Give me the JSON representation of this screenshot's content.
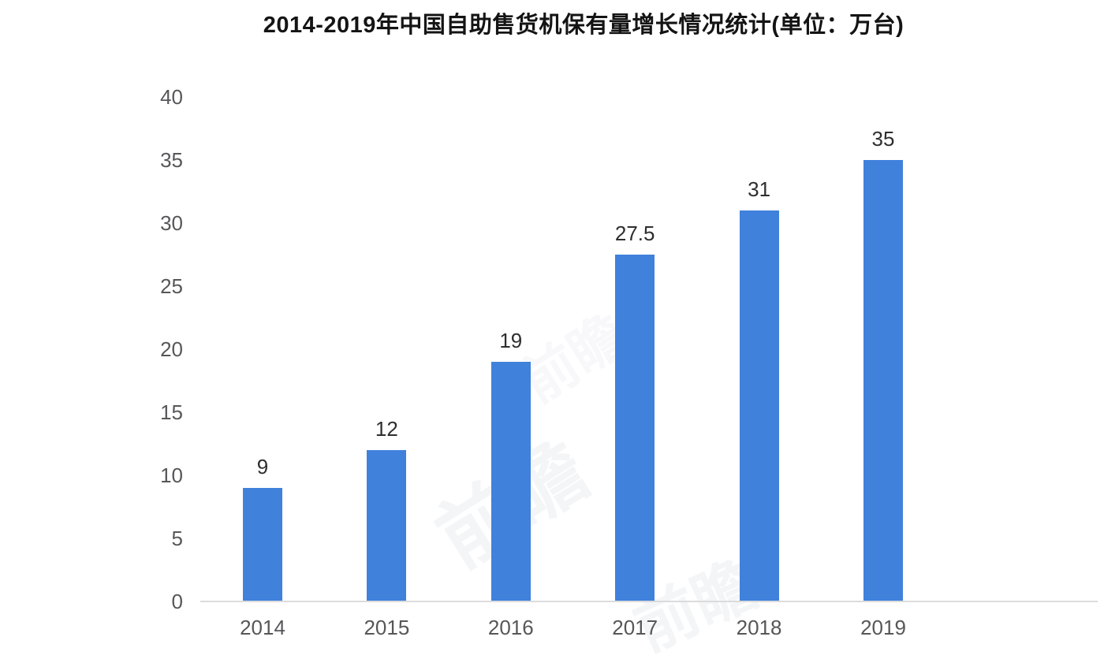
{
  "chart_data": {
    "type": "bar",
    "title": "2014-2019年中国自助售货机保有量增长情况统计(单位：万台)",
    "categories": [
      "2014",
      "2015",
      "2016",
      "2017",
      "2018",
      "2019"
    ],
    "values": [
      9,
      12,
      19,
      27.5,
      31,
      35
    ],
    "xlabel": "",
    "ylabel": "",
    "unit": "万台",
    "ylim": [
      0,
      40
    ],
    "yticks": [
      0,
      5,
      10,
      15,
      20,
      25,
      30,
      35,
      40
    ],
    "grid": false,
    "legend": false,
    "bar_color": "#4081dc",
    "baseline_color": "#dbdbdb",
    "value_label_color": "#2e2e30",
    "axis_label_color": "#57575a",
    "title_color": "#141414"
  },
  "watermark": {
    "text": "前瞻"
  }
}
